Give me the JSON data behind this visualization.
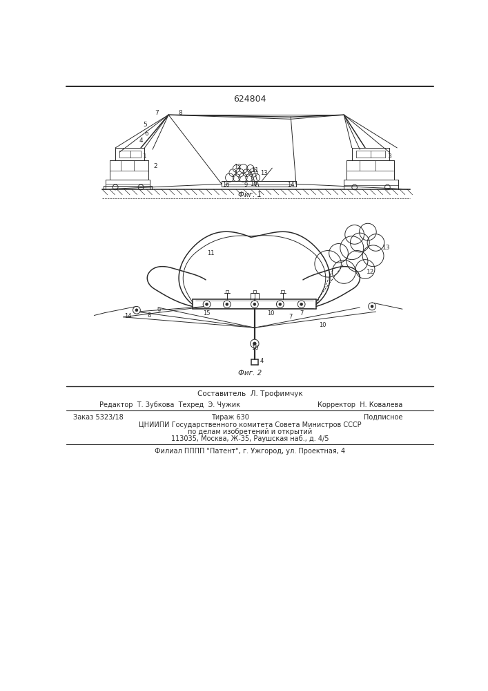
{
  "patent_number": "624804",
  "bg_color": "#ffffff",
  "line_color": "#2a2a2a",
  "fig1_caption": "Фиг. 1",
  "fig2_caption": "Фиг. 2",
  "footer_line1": "Составитель  Л. Трофимчук",
  "footer_line2_left": "Редактор  Т. Зубкова  Техред  Э. Чужик",
  "footer_line2_right": "Корректор  Н. Ковалева",
  "footer_line3_left": "Заказ 5323/18",
  "footer_line3_mid": "Тираж 630",
  "footer_line3_right": "Подписное",
  "footer_line4": "ЦНИИПИ Государственного комитета Совета Министров СССР",
  "footer_line5": "по делам изобретений и открытий",
  "footer_line6": "113035, Москва, Ж-35, Раушская наб., д. 4/5",
  "footer_line7": "Филиал ПППП \"Патент\", г. Ужгород, ул. Проектная, 4"
}
